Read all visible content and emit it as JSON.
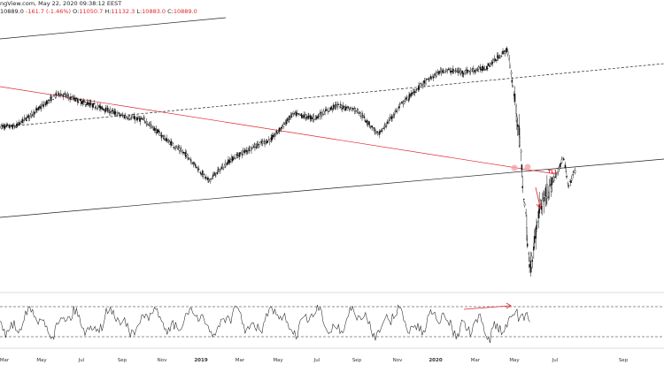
{
  "header": {
    "source": "ngView.com, May 22, 2020 09:38:12 EEST",
    "last": "10889.0",
    "change": "-161.7 (-1.46%)",
    "o_label": "O:",
    "o": "11050.7",
    "h_label": "H:",
    "h": "11132.3",
    "l_label": "L:",
    "l": "10883.0",
    "c_label": "C:",
    "c": "10889.0"
  },
  "chart_data": [
    {
      "type": "candlestick",
      "title": "",
      "xlabel": "",
      "ylabel": "",
      "x_ticks": [
        "Mar",
        "May",
        "Jul",
        "Sep",
        "Nov",
        "2019",
        "Mar",
        "May",
        "Jul",
        "Sep",
        "Nov",
        "2020",
        "Mar",
        "May",
        "Jul",
        "Sep"
      ],
      "bold_ticks": [
        "2019",
        "2020"
      ],
      "date_range": [
        "2018-03",
        "2020-09"
      ],
      "series": [
        {
          "points": [
            [
              "2018-03",
              11900
            ],
            [
              "2018-04",
              12300
            ],
            [
              "2018-05",
              12700
            ],
            [
              "2018-06",
              12500
            ],
            [
              "2018-07",
              12350
            ],
            [
              "2018-08",
              12150
            ],
            [
              "2018-09",
              12050
            ],
            [
              "2018-10",
              11600
            ],
            [
              "2018-11",
              11200
            ],
            [
              "2018-12",
              10600
            ],
            [
              "2019-01",
              11100
            ],
            [
              "2019-02",
              11400
            ],
            [
              "2019-03",
              11600
            ],
            [
              "2019-04",
              12200
            ],
            [
              "2019-05",
              12100
            ],
            [
              "2019-06",
              12400
            ],
            [
              "2019-07",
              12300
            ],
            [
              "2019-08",
              11700
            ],
            [
              "2019-09",
              12400
            ],
            [
              "2019-10",
              12900
            ],
            [
              "2019-11",
              13250
            ],
            [
              "2019-12",
              13200
            ],
            [
              "2020-01",
              13300
            ],
            [
              "2020-02",
              13750
            ],
            [
              "2020-03-01",
              12000
            ],
            [
              "2020-03-18",
              8440
            ],
            [
              "2020-04-01",
              10000
            ],
            [
              "2020-04-20",
              10600
            ],
            [
              "2020-05-05",
              11150
            ],
            [
              "2020-05-12",
              10450
            ],
            [
              "2020-05-22",
              10889
            ]
          ]
        }
      ],
      "trendlines": [
        {
          "name": "channel-upper",
          "style": "dashed",
          "color": "#222222"
        },
        {
          "name": "channel-lower",
          "style": "solid",
          "color": "#222222"
        },
        {
          "name": "top-line",
          "style": "solid",
          "color": "#222222"
        },
        {
          "name": "TL1",
          "style": "solid",
          "color": "#e0262f"
        }
      ],
      "annotations": [
        "TL1"
      ],
      "highlight_color": "#f4a3a8",
      "arrow_color": "#e0262f"
    },
    {
      "type": "line",
      "name": "oscillator",
      "levels": [
        "upper-dashed",
        "lower-dashed"
      ],
      "divergence_arrow_color": "#e0262f"
    }
  ]
}
